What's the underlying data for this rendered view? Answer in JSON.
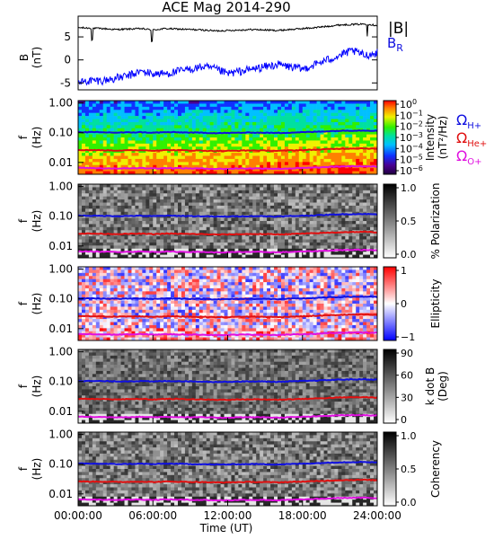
{
  "title": "ACE Mag 2014-290",
  "x_axis": {
    "label": "Time (UT)",
    "ticks": [
      "00:00:00",
      "06:00:00",
      "12:00:00",
      "18:00:00",
      "24:00:00"
    ],
    "range_hours": [
      0,
      24
    ]
  },
  "legend_top": {
    "b_total": "|B|",
    "b_radial": "B",
    "b_radial_sub": "R"
  },
  "cyclotron_labels": [
    {
      "omega": "Ω",
      "sub": "H+",
      "color": "#1010e0"
    },
    {
      "omega": "Ω",
      "sub": "He+",
      "color": "#e01010"
    },
    {
      "omega": "Ω",
      "sub": "O+",
      "color": "#e010e0"
    }
  ],
  "colors": {
    "b_total": "#000000",
    "b_radial": "#0000ff",
    "H+": "#1010e0",
    "He+": "#e01010",
    "O+": "#e010e0"
  },
  "panels": [
    {
      "id": "mag",
      "ylabel": "B",
      "ylabel_unit": "(nT)",
      "yticks": [
        "5",
        "0",
        "-5"
      ],
      "ylim": [
        -6.5,
        9.5
      ]
    },
    {
      "id": "intensity",
      "ylabel": "f",
      "ylabel_unit": "(Hz)",
      "yticks": [
        "1.00",
        "0.10",
        "0.01"
      ],
      "colorbar": {
        "label": "Intensity",
        "label_unit": "(nT²/Hz)",
        "base": "10",
        "exponents": [
          "0",
          "−1",
          "−2",
          "−3",
          "−4",
          "−5",
          "−6"
        ],
        "scale": "rainbow"
      }
    },
    {
      "id": "polarization",
      "ylabel": "f",
      "ylabel_unit": "(Hz)",
      "yticks": [
        "1.00",
        "0.10",
        "0.01"
      ],
      "colorbar": {
        "label": "% Polarization",
        "ticks": [
          "1.0",
          "0.5",
          "0.0"
        ],
        "scale": "gray"
      }
    },
    {
      "id": "ellipticity",
      "ylabel": "f",
      "ylabel_unit": "(Hz)",
      "yticks": [
        "1.00",
        "0.10",
        "0.01"
      ],
      "colorbar": {
        "label": "Ellipticity",
        "ticks": [
          "1",
          "0",
          "−1"
        ],
        "scale": "bluewhitered"
      }
    },
    {
      "id": "kdotb",
      "ylabel": "f",
      "ylabel_unit": "(Hz)",
      "yticks": [
        "1.00",
        "0.10",
        "0.01"
      ],
      "colorbar": {
        "label": "k dot B",
        "label_unit": "(Deg)",
        "ticks": [
          "90",
          "60",
          "30",
          "0"
        ],
        "scale": "gray"
      }
    },
    {
      "id": "coherency",
      "ylabel": "f",
      "ylabel_unit": "(Hz)",
      "yticks": [
        "1.00",
        "0.10",
        "0.01"
      ],
      "colorbar": {
        "label": "Coherency",
        "ticks": [
          "1.0",
          "0.5",
          "0.0"
        ],
        "scale": "gray"
      }
    }
  ],
  "chart_data": [
    {
      "type": "line",
      "title": "ACE Mag 2014-290",
      "ylabel": "B (nT)",
      "ylim": [
        -6.5,
        9.5
      ],
      "x_hours": [
        0,
        1,
        2,
        3,
        4,
        5,
        6,
        7,
        8,
        9,
        10,
        11,
        12,
        13,
        14,
        15,
        16,
        17,
        18,
        19,
        20,
        21,
        22,
        23,
        24
      ],
      "series": [
        {
          "name": "|B|",
          "values": [
            7.0,
            6.9,
            6.8,
            6.6,
            6.7,
            6.8,
            6.5,
            6.8,
            6.7,
            6.6,
            6.5,
            6.3,
            6.4,
            6.5,
            6.6,
            6.5,
            6.4,
            6.6,
            6.8,
            7.0,
            7.3,
            7.6,
            7.7,
            7.8,
            7.5
          ]
        },
        {
          "name": "B_R",
          "values": [
            -5.0,
            -4.5,
            -4.5,
            -4.0,
            -3.5,
            -2.5,
            -3.0,
            -3.0,
            -2.5,
            -2.0,
            -1.5,
            -2.0,
            -3.0,
            -2.5,
            -2.0,
            -1.5,
            -1.0,
            -1.5,
            -2.0,
            -1.0,
            0.0,
            1.0,
            2.0,
            1.0,
            1.5
          ]
        }
      ]
    },
    {
      "type": "line",
      "ylabel": "f (Hz)",
      "yscale": "log",
      "ylim": [
        0.004,
        1.2
      ],
      "x_hours": [
        0,
        1,
        2,
        3,
        4,
        5,
        6,
        7,
        8,
        9,
        10,
        11,
        12,
        13,
        14,
        15,
        16,
        17,
        18,
        19,
        20,
        21,
        22,
        23,
        24
      ],
      "series": [
        {
          "name": "Ω_H+",
          "values": [
            0.105,
            0.104,
            0.103,
            0.101,
            0.102,
            0.104,
            0.1,
            0.104,
            0.103,
            0.101,
            0.1,
            0.097,
            0.098,
            0.1,
            0.101,
            0.1,
            0.098,
            0.101,
            0.104,
            0.107,
            0.112,
            0.116,
            0.118,
            0.119,
            0.115
          ]
        },
        {
          "name": "Ω_He+",
          "values": [
            0.0263,
            0.026,
            0.0258,
            0.0253,
            0.0255,
            0.026,
            0.025,
            0.026,
            0.0258,
            0.0253,
            0.025,
            0.0243,
            0.0245,
            0.025,
            0.0253,
            0.025,
            0.0245,
            0.0253,
            0.026,
            0.0268,
            0.028,
            0.029,
            0.0295,
            0.0298,
            0.0288
          ]
        },
        {
          "name": "Ω_O+",
          "values": [
            0.0066,
            0.0065,
            0.0064,
            0.0063,
            0.0064,
            0.0065,
            0.0063,
            0.0065,
            0.0064,
            0.0063,
            0.0063,
            0.0061,
            0.0061,
            0.0063,
            0.0063,
            0.0063,
            0.0061,
            0.0063,
            0.0065,
            0.0067,
            0.007,
            0.0073,
            0.0074,
            0.0074,
            0.0072
          ]
        }
      ]
    }
  ]
}
